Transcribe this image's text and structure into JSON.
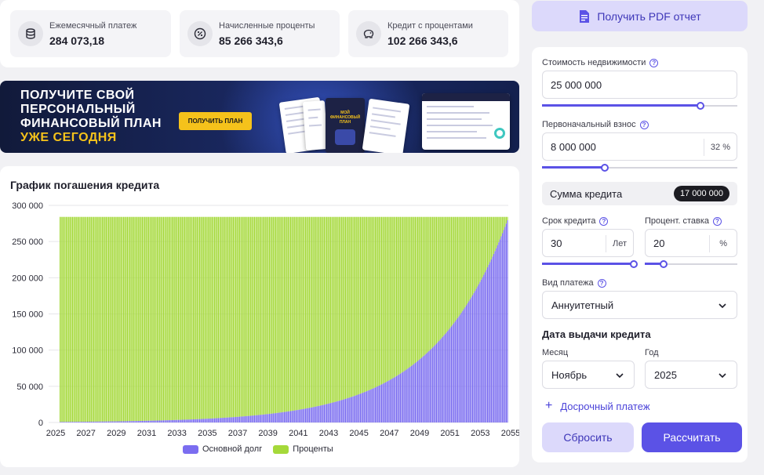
{
  "summary": {
    "items": [
      {
        "label": "Ежемесячный платеж",
        "value": "284 073,18",
        "icon": "coins-icon"
      },
      {
        "label": "Начисленные проценты",
        "value": "85 266 343,6",
        "icon": "percent-icon"
      },
      {
        "label": "Кредит с процентами",
        "value": "102 266 343,6",
        "icon": "piggy-bank-icon"
      }
    ]
  },
  "banner": {
    "line1": "ПОЛУЧИТЕ СВОЙ",
    "line2": "ПЕРСОНАЛЬНЫЙ",
    "line3": "ФИНАНСОВЫЙ ПЛАН",
    "line4": "УЖЕ СЕГОДНЯ",
    "cta": "ПОЛУЧИТЬ ПЛАН",
    "doc_title": "МОЙ ФИНАНСОВЫЙ ПЛАН",
    "colors": {
      "accent": "#f5c21b",
      "bg": "#13204e"
    }
  },
  "chart": {
    "title": "График погашения кредита",
    "legend": {
      "principal": "Основной долг",
      "interest": "Проценты"
    }
  },
  "chart_data": {
    "type": "bar",
    "stacked": true,
    "title": "График погашения кредита",
    "payment": 284073.18,
    "principal_amount": 17000000,
    "annual_rate_percent": 20,
    "months": 360,
    "start": {
      "month": 11,
      "year": 2025
    },
    "y_ticks": [
      "0",
      "50 000",
      "100 000",
      "150 000",
      "200 000",
      "250 000",
      "300 000"
    ],
    "ylim": [
      0,
      300000
    ],
    "x_ticks": [
      "2025",
      "2027",
      "2029",
      "2031",
      "2033",
      "2035",
      "2037",
      "2039",
      "2041",
      "2043",
      "2045",
      "2047",
      "2049",
      "2051",
      "2053",
      "2055"
    ],
    "series": [
      {
        "name": "Основной долг",
        "color": "#7b6df0"
      },
      {
        "name": "Проценты",
        "color": "#a5d93a"
      }
    ],
    "grid": true,
    "legend_position": "bottom-center"
  },
  "right": {
    "pdf_button": "Получить PDF отчет",
    "property_label": "Стоимость недвижимости",
    "property_value": "25 000 000",
    "property_slider": 0.81,
    "down_label": "Первоначальный взнос",
    "down_value": "8 000 000",
    "down_percent": "32 %",
    "down_slider": 0.32,
    "credit_sum_label": "Сумма кредита",
    "credit_sum_value": "17 000 000",
    "term_label": "Срок кредита",
    "term_value": "30",
    "term_unit": "Лет",
    "term_slider": 1.0,
    "rate_label": "Процент. ставка",
    "rate_value": "20",
    "rate_unit": "%",
    "rate_slider": 0.2,
    "payment_type_label": "Вид платежа",
    "payment_type_value": "Аннуитетный",
    "issue_date_title": "Дата выдачи кредита",
    "month_label": "Месяц",
    "month_value": "Ноябрь",
    "year_label": "Год",
    "year_value": "2025",
    "early_payment": "Досрочный платеж",
    "reset_button": "Сбросить",
    "calc_button": "Рассчитать",
    "help_glyph": "?",
    "colors": {
      "accent": "#5b52e6",
      "accent_soft": "#dcd9fb"
    }
  }
}
